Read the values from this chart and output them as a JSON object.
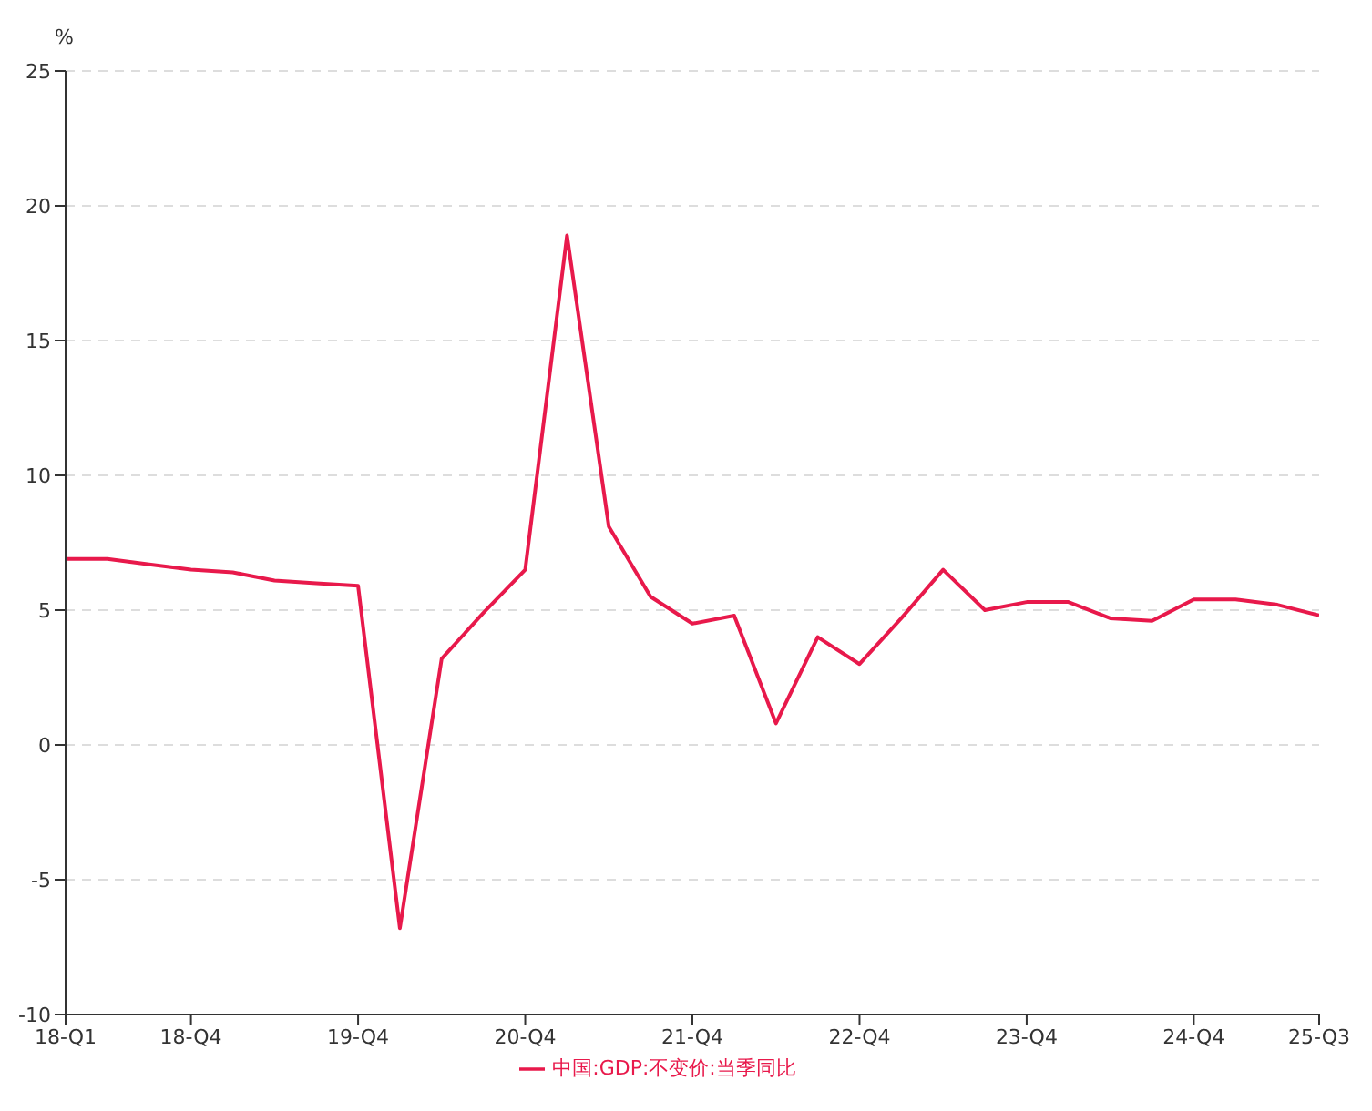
{
  "chart_data": {
    "type": "line",
    "ylabel": "%",
    "categories": [
      "18-Q1",
      null,
      null,
      "18-Q4",
      null,
      null,
      null,
      "19-Q4",
      null,
      null,
      null,
      "20-Q4",
      null,
      null,
      null,
      "21-Q4",
      null,
      null,
      null,
      "22-Q4",
      null,
      null,
      null,
      "23-Q4",
      null,
      null,
      null,
      "24-Q4",
      null,
      null,
      "25-Q3"
    ],
    "series": [
      {
        "name": "中国:GDP:不变价:当季同比",
        "color": "#e8194b",
        "values": [
          6.9,
          6.9,
          6.7,
          6.5,
          6.4,
          6.1,
          6.0,
          5.9,
          -6.8,
          3.2,
          4.9,
          6.5,
          18.9,
          8.1,
          5.5,
          4.5,
          4.8,
          0.8,
          4.0,
          3.0,
          4.7,
          6.5,
          5.0,
          5.3,
          5.3,
          4.7,
          4.6,
          5.4,
          5.4,
          5.2,
          4.8
        ]
      }
    ],
    "ylim": [
      -10,
      25
    ],
    "yticks": [
      -10,
      -5,
      0,
      5,
      10,
      15,
      20,
      25
    ],
    "grid": "y",
    "legend": "bottom",
    "marker": "none",
    "line_style": "solid"
  }
}
